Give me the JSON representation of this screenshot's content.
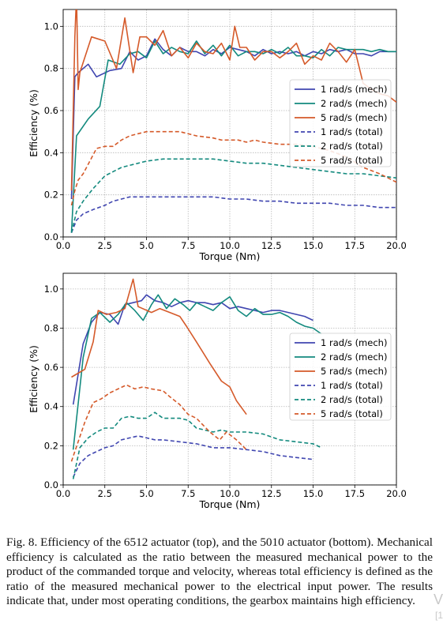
{
  "chart_data": [
    {
      "type": "line",
      "xlabel": "Torque (Nm)",
      "ylabel": "Efficiency (%)",
      "xlim": [
        0,
        20
      ],
      "ylim": [
        0,
        1.08
      ],
      "xticks": [
        "0.0",
        "2.5",
        "5.0",
        "7.5",
        "10.0",
        "12.5",
        "15.0",
        "17.5",
        "20.0"
      ],
      "yticks": [
        "0.0",
        "0.2",
        "0.4",
        "0.6",
        "0.8",
        "1.0"
      ],
      "grid": true,
      "legend_position": "right",
      "series": [
        {
          "name": "1 rad/s (mech)",
          "style": "solid",
          "color": "#4046b0",
          "x": [
            0.5,
            0.7,
            0.9,
            1.5,
            2.0,
            2.8,
            3.5,
            4.0,
            4.5,
            5.0,
            5.5,
            6.0,
            6.5,
            7.0,
            7.5,
            8.0,
            8.5,
            9.0,
            9.5,
            10.0,
            10.5,
            11.0,
            11.5,
            12.0,
            12.5,
            13.0,
            13.5,
            14.0,
            14.5,
            15.0,
            15.5,
            16.0,
            16.5,
            17.0,
            17.5,
            18.0,
            18.5,
            19.0,
            19.5,
            20.0
          ],
          "y": [
            0.18,
            0.76,
            0.78,
            0.82,
            0.76,
            0.79,
            0.8,
            0.88,
            0.84,
            0.86,
            0.94,
            0.89,
            0.86,
            0.9,
            0.88,
            0.88,
            0.86,
            0.89,
            0.87,
            0.9,
            0.89,
            0.88,
            0.86,
            0.89,
            0.87,
            0.88,
            0.87,
            0.88,
            0.86,
            0.88,
            0.87,
            0.89,
            0.88,
            0.89,
            0.87,
            0.87,
            0.86,
            0.88,
            0.88,
            0.88
          ]
        },
        {
          "name": "2 rad/s (mech)",
          "style": "solid",
          "color": "#138a7e",
          "x": [
            0.5,
            0.8,
            1.5,
            2.2,
            2.7,
            3.4,
            4.0,
            4.5,
            5.0,
            5.5,
            6.0,
            6.5,
            7.0,
            7.5,
            8.0,
            8.5,
            9.0,
            9.5,
            10.0,
            10.5,
            11.0,
            11.5,
            12.0,
            12.5,
            13.0,
            13.5,
            14.0,
            14.5,
            15.0,
            15.5,
            16.0,
            16.5,
            17.0,
            17.5,
            18.0,
            18.5,
            19.0,
            19.5,
            20.0
          ],
          "y": [
            0.02,
            0.48,
            0.56,
            0.62,
            0.84,
            0.82,
            0.87,
            0.88,
            0.85,
            0.93,
            0.87,
            0.9,
            0.88,
            0.87,
            0.93,
            0.87,
            0.91,
            0.86,
            0.91,
            0.86,
            0.88,
            0.88,
            0.87,
            0.89,
            0.87,
            0.9,
            0.86,
            0.86,
            0.85,
            0.89,
            0.86,
            0.9,
            0.89,
            0.89,
            0.89,
            0.88,
            0.89,
            0.88,
            0.88
          ]
        },
        {
          "name": "5 rad/s (mech)",
          "style": "solid",
          "color": "#d55a2a",
          "x": [
            0.5,
            0.7,
            0.8,
            0.9,
            1.0,
            1.7,
            2.5,
            3.2,
            3.7,
            4.2,
            4.6,
            5.0,
            5.5,
            6.0,
            6.5,
            7.0,
            7.5,
            8.0,
            8.5,
            9.0,
            9.5,
            10.0,
            10.3,
            10.6,
            11.0,
            11.5,
            12.0,
            12.5,
            13.0,
            13.5,
            14.0,
            14.5,
            15.0,
            15.5,
            16.0,
            16.5,
            17.0,
            17.5,
            18.0,
            18.5,
            19.0,
            19.5,
            20.0
          ],
          "y": [
            0.22,
            0.95,
            1.15,
            0.7,
            0.78,
            0.95,
            0.93,
            0.8,
            1.04,
            0.78,
            0.95,
            0.95,
            0.91,
            0.98,
            0.86,
            0.9,
            0.85,
            0.92,
            0.88,
            0.87,
            0.92,
            0.84,
            1.0,
            0.9,
            0.9,
            0.84,
            0.88,
            0.88,
            0.85,
            0.88,
            0.92,
            0.82,
            0.86,
            0.84,
            0.92,
            0.88,
            0.83,
            0.89,
            0.73,
            0.7,
            0.68,
            0.67,
            0.64
          ]
        },
        {
          "name": "1 rad/s (total)",
          "style": "dashed",
          "color": "#4046b0",
          "x": [
            0.5,
            0.8,
            1.2,
            1.8,
            2.5,
            3.0,
            3.5,
            4.0,
            5.0,
            6.0,
            7.0,
            8.0,
            9.0,
            10.0,
            11.0,
            12.0,
            13.0,
            14.0,
            15.0,
            16.0,
            17.0,
            18.0,
            19.0,
            20.0
          ],
          "y": [
            0.02,
            0.08,
            0.11,
            0.13,
            0.15,
            0.17,
            0.18,
            0.19,
            0.19,
            0.19,
            0.19,
            0.19,
            0.19,
            0.18,
            0.18,
            0.17,
            0.17,
            0.16,
            0.16,
            0.16,
            0.15,
            0.15,
            0.14,
            0.14
          ]
        },
        {
          "name": "2 rad/s (total)",
          "style": "dashed",
          "color": "#138a7e",
          "x": [
            0.5,
            0.8,
            1.2,
            1.8,
            2.5,
            3.0,
            3.5,
            4.0,
            4.5,
            5.0,
            6.0,
            7.0,
            8.0,
            9.0,
            10.0,
            11.0,
            12.0,
            13.0,
            14.0,
            15.0,
            16.0,
            17.0,
            18.0,
            19.0,
            20.0
          ],
          "y": [
            0.02,
            0.12,
            0.17,
            0.23,
            0.29,
            0.31,
            0.33,
            0.34,
            0.35,
            0.36,
            0.37,
            0.37,
            0.37,
            0.37,
            0.36,
            0.35,
            0.35,
            0.34,
            0.33,
            0.32,
            0.31,
            0.3,
            0.3,
            0.29,
            0.28
          ]
        },
        {
          "name": "5 rad/s (total)",
          "style": "dashed",
          "color": "#d55a2a",
          "x": [
            0.5,
            0.7,
            0.9,
            1.2,
            1.6,
            2.0,
            2.5,
            3.0,
            3.5,
            4.0,
            4.5,
            5.0,
            6.0,
            7.0,
            8.0,
            9.0,
            9.5,
            10.0,
            10.5,
            11.0,
            11.5,
            12.0,
            13.0,
            14.0,
            15.0,
            16.0,
            17.0,
            18.0,
            19.0,
            19.5,
            20.0
          ],
          "y": [
            0.15,
            0.22,
            0.27,
            0.3,
            0.36,
            0.42,
            0.43,
            0.43,
            0.46,
            0.48,
            0.49,
            0.5,
            0.5,
            0.5,
            0.48,
            0.47,
            0.46,
            0.46,
            0.46,
            0.45,
            0.46,
            0.45,
            0.44,
            0.44,
            0.43,
            0.41,
            0.38,
            0.33,
            0.3,
            0.28,
            0.26
          ]
        }
      ]
    },
    {
      "type": "line",
      "xlabel": "Torque (Nm)",
      "ylabel": "Efficiency (%)",
      "xlim": [
        0,
        20
      ],
      "ylim": [
        0,
        1.08
      ],
      "xticks": [
        "0.0",
        "2.5",
        "5.0",
        "7.5",
        "10.0",
        "12.5",
        "15.0",
        "17.5",
        "20.0"
      ],
      "yticks": [
        "0.0",
        "0.2",
        "0.4",
        "0.6",
        "0.8",
        "1.0"
      ],
      "grid": true,
      "legend_position": "right",
      "series": [
        {
          "name": "1 rad/s (mech)",
          "style": "solid",
          "color": "#4046b0",
          "x": [
            0.6,
            1.2,
            1.7,
            2.2,
            2.8,
            3.3,
            3.7,
            4.2,
            4.7,
            5.0,
            5.5,
            6.0,
            6.5,
            7.0,
            7.5,
            8.0,
            8.5,
            9.0,
            9.5,
            10.0,
            10.5,
            11.0,
            11.5,
            12.0,
            12.5,
            13.0,
            13.5,
            14.0,
            14.5,
            15.0
          ],
          "y": [
            0.41,
            0.72,
            0.83,
            0.88,
            0.87,
            0.82,
            0.92,
            0.93,
            0.94,
            0.97,
            0.94,
            0.93,
            0.91,
            0.93,
            0.94,
            0.93,
            0.93,
            0.92,
            0.93,
            0.9,
            0.91,
            0.9,
            0.89,
            0.88,
            0.89,
            0.89,
            0.88,
            0.87,
            0.86,
            0.84
          ]
        },
        {
          "name": "2 rad/s (mech)",
          "style": "solid",
          "color": "#138a7e",
          "x": [
            0.6,
            1.2,
            1.7,
            2.2,
            2.8,
            3.3,
            3.8,
            4.3,
            4.8,
            5.3,
            5.7,
            6.2,
            6.7,
            7.2,
            7.6,
            8.0,
            8.5,
            9.0,
            9.5,
            10.0,
            10.5,
            11.0,
            11.5,
            12.0,
            12.5,
            13.0,
            13.5,
            14.0,
            14.5,
            15.0,
            15.5
          ],
          "y": [
            0.18,
            0.65,
            0.85,
            0.88,
            0.83,
            0.87,
            0.93,
            0.89,
            0.84,
            0.92,
            0.97,
            0.9,
            0.95,
            0.92,
            0.89,
            0.93,
            0.91,
            0.89,
            0.93,
            0.96,
            0.89,
            0.86,
            0.9,
            0.87,
            0.87,
            0.88,
            0.86,
            0.83,
            0.81,
            0.8,
            0.77
          ]
        },
        {
          "name": "5 rad/s (mech)",
          "style": "solid",
          "color": "#d55a2a",
          "x": [
            0.5,
            1.3,
            1.8,
            2.1,
            2.6,
            3.2,
            3.7,
            4.2,
            4.5,
            5.3,
            5.8,
            6.4,
            7.0,
            7.4,
            8.0,
            8.8,
            9.5,
            10.0,
            10.4,
            11.0
          ],
          "y": [
            0.55,
            0.59,
            0.73,
            0.89,
            0.87,
            0.88,
            0.9,
            1.05,
            0.91,
            0.88,
            0.9,
            0.88,
            0.86,
            0.81,
            0.73,
            0.62,
            0.53,
            0.5,
            0.43,
            0.36
          ]
        },
        {
          "name": "1 rad/s (total)",
          "style": "dashed",
          "color": "#4046b0",
          "x": [
            0.6,
            1.0,
            1.5,
            2.0,
            2.5,
            3.0,
            3.5,
            4.0,
            4.5,
            5.0,
            5.5,
            6.0,
            7.0,
            8.0,
            9.0,
            10.0,
            11.0,
            12.0,
            13.0,
            14.0,
            15.0
          ],
          "y": [
            0.04,
            0.11,
            0.15,
            0.17,
            0.19,
            0.2,
            0.23,
            0.24,
            0.25,
            0.24,
            0.23,
            0.23,
            0.22,
            0.21,
            0.19,
            0.19,
            0.18,
            0.17,
            0.15,
            0.14,
            0.13
          ]
        },
        {
          "name": "2 rad/s (total)",
          "style": "dashed",
          "color": "#138a7e",
          "x": [
            0.6,
            1.0,
            1.5,
            2.0,
            2.5,
            3.0,
            3.5,
            4.0,
            4.5,
            5.0,
            5.5,
            6.0,
            7.0,
            7.5,
            8.0,
            9.0,
            9.5,
            10.0,
            11.0,
            12.0,
            13.0,
            14.0,
            15.0,
            15.5
          ],
          "y": [
            0.03,
            0.19,
            0.24,
            0.27,
            0.29,
            0.29,
            0.34,
            0.35,
            0.34,
            0.34,
            0.37,
            0.34,
            0.34,
            0.33,
            0.29,
            0.27,
            0.28,
            0.27,
            0.27,
            0.26,
            0.23,
            0.22,
            0.21,
            0.19
          ]
        },
        {
          "name": "5 rad/s (total)",
          "style": "dashed",
          "color": "#d55a2a",
          "x": [
            0.5,
            1.3,
            1.8,
            2.3,
            2.8,
            3.3,
            3.8,
            4.3,
            4.8,
            5.3,
            6.0,
            6.4,
            7.0,
            7.5,
            8.0,
            8.8,
            9.4,
            9.8,
            10.4,
            11.0
          ],
          "y": [
            0.12,
            0.32,
            0.42,
            0.44,
            0.47,
            0.49,
            0.51,
            0.49,
            0.5,
            0.49,
            0.48,
            0.45,
            0.41,
            0.36,
            0.34,
            0.27,
            0.23,
            0.27,
            0.23,
            0.18
          ]
        }
      ]
    }
  ],
  "caption": {
    "text": "Fig. 8.   Efficiency of the 6512 actuator (top), and the 5010 actuator (bottom). Mechanical efficiency is calculated as the ratio between the measured mechanical power to the product of the commanded torque and velocity, whereas total efficiency is defined as the ratio of the measured mechanical power to the electrical input power. The results indicate that, under most operating conditions, the gearbox maintains high efficiency."
  },
  "edge_fragment": {
    "glyph": "V",
    "small": "[1"
  }
}
